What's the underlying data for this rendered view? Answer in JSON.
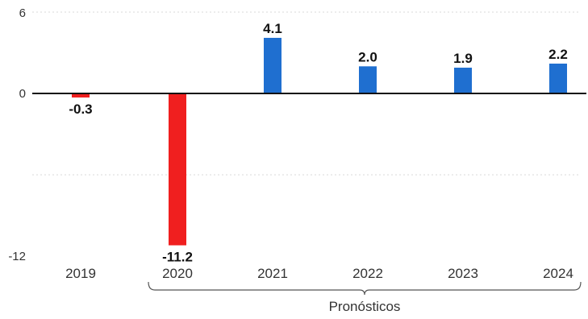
{
  "chart_data": {
    "type": "bar",
    "categories": [
      "2019",
      "2020",
      "2021",
      "2022",
      "2023",
      "2024"
    ],
    "values": [
      -0.3,
      -11.2,
      4.1,
      2.0,
      1.9,
      2.2
    ],
    "data_labels": [
      "-0.3",
      "-11.2",
      "4.1",
      "2.0",
      "1.9",
      "2.2"
    ],
    "title": "",
    "xlabel": "",
    "ylabel": "",
    "ylim": [
      -12,
      6
    ],
    "yticks": [
      6,
      0,
      -12
    ],
    "ytick_labels": [
      "6",
      "0",
      "-12"
    ],
    "grid": true,
    "colors": {
      "negative": "#f01f1f",
      "positive": "#1f6fd0",
      "zero_line": "#111111"
    },
    "bracket_label": "Pronósticos",
    "bracket_categories": [
      "2020",
      "2021",
      "2022",
      "2023",
      "2024"
    ]
  }
}
